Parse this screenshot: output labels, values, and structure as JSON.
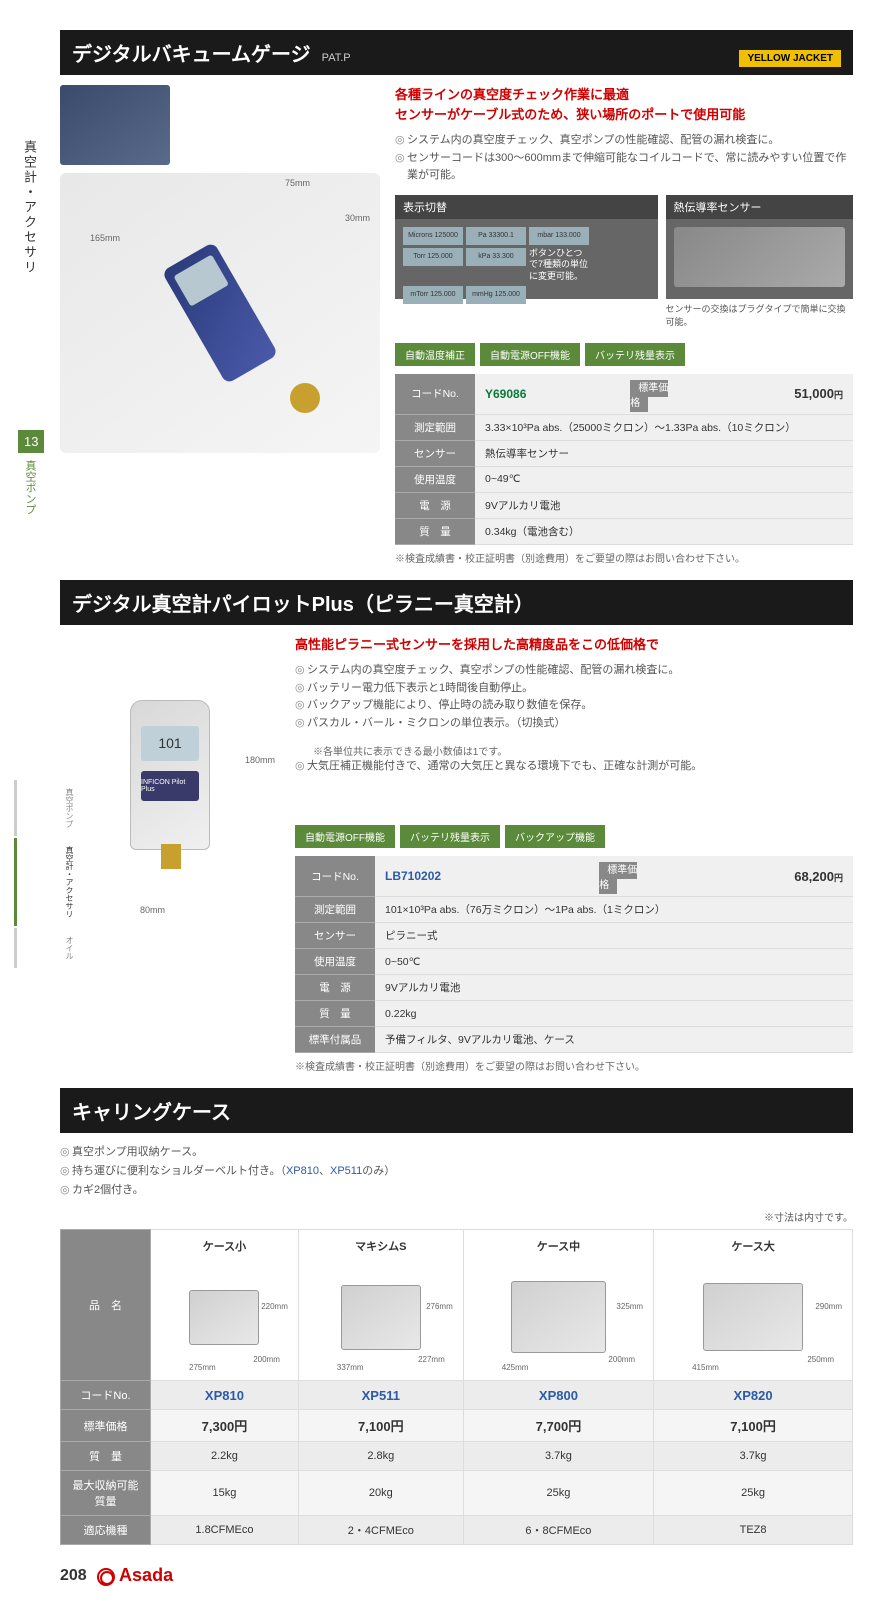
{
  "side": {
    "category": "真空計・アクセサリ",
    "num": "13",
    "sub": "真空ポンプ",
    "tags": [
      "真空ポンプ",
      "真空計・アクセサリ",
      "オイル"
    ]
  },
  "sec1": {
    "title": "デジタルバキュームゲージ",
    "pat": "PAT.P",
    "brand": "YELLOW JACKET",
    "tagline1": "各種ラインの真空度チェック作業に最適",
    "tagline2": "センサーがケーブル式のため、狭い場所のポートで使用可能",
    "feats": [
      "システム内の真空度チェック、真空ポンプの性能確認、配管の漏れ検査に。",
      "センサーコードは300～600mmまで伸縮可能なコイルコードで、常に読みやすい位置で作業が可能。"
    ],
    "dims": {
      "w": "75mm",
      "h": "165mm",
      "d": "30mm"
    },
    "panel1": {
      "hdr": "表示切替",
      "chips": [
        "Microns 125000",
        "Pa 33300.1",
        "mbar 133.000",
        "Torr 125.000",
        "kPa 33.300",
        "",
        "mTorr 125.000",
        "mmHg 125.000"
      ],
      "caption": "ボタンひとつで7種類の単位に変更可能。"
    },
    "panel2": {
      "hdr": "熱伝導率センサー",
      "caption": "センサーの交換はプラグタイプで簡単に交換可能。"
    },
    "badges": [
      "自動温度補正",
      "自動電源OFF機能",
      "バッテリ残量表示"
    ],
    "spec": {
      "code_lbl": "コードNo.",
      "code": "Y69086",
      "price_lbl": "標準価格",
      "price": "51,000",
      "yen": "円",
      "rows": [
        [
          "測定範囲",
          "3.33×10³Pa abs.（25000ミクロン）～1.33Pa abs.（10ミクロン）"
        ],
        [
          "センサー",
          "熱伝導率センサー"
        ],
        [
          "使用温度",
          "0~49℃"
        ],
        [
          "電　源",
          "9Vアルカリ電池"
        ],
        [
          "質　量",
          "0.34kg（電池含む）"
        ]
      ]
    },
    "note": "※検査成績書・校正証明書（別途費用）をご要望の際はお問い合わせ下さい。"
  },
  "sec2": {
    "title": "デジタル真空計パイロットPlus（ピラニー真空計）",
    "tagline": "高性能ピラニー式センサーを採用した高精度品をこの低価格で",
    "dims": {
      "h": "180mm",
      "w": "80mm"
    },
    "display": "101",
    "badge_text": "INFICON Pilot Plus",
    "feats": [
      "システム内の真空度チェック、真空ポンプの性能確認、配管の漏れ検査に。",
      "バッテリー電力低下表示と1時間後自動停止。",
      "バックアップ機能により、停止時の読み取り数値を保存。",
      "パスカル・バール・ミクロンの単位表示。（切換式）"
    ],
    "feat_note": "※各単位共に表示できる最小数値は1です。",
    "feat_extra": "大気圧補正機能付きで、通常の大気圧と異なる環境下でも、正確な計測が可能。",
    "badges": [
      "自動電源OFF機能",
      "バッテリ残量表示",
      "バックアップ機能"
    ],
    "spec": {
      "code_lbl": "コードNo.",
      "code": "LB710202",
      "price_lbl": "標準価格",
      "price": "68,200",
      "yen": "円",
      "rows": [
        [
          "測定範囲",
          "101×10³Pa abs.（76万ミクロン）～1Pa abs.（1ミクロン）"
        ],
        [
          "センサー",
          "ピラニー式"
        ],
        [
          "使用温度",
          "0~50℃"
        ],
        [
          "電　源",
          "9Vアルカリ電池"
        ],
        [
          "質　量",
          "0.22kg"
        ],
        [
          "標準付属品",
          "予備フィルタ、9Vアルカリ電池、ケース"
        ]
      ]
    },
    "note": "※検査成績書・校正証明書（別途費用）をご要望の際はお問い合わせ下さい。"
  },
  "sec3": {
    "title": "キャリングケース",
    "desc": [
      "真空ポンプ用収納ケース。",
      "持ち運びに便利なショルダーベルト付き。（XP810、XP511のみ）",
      "カギ2個付き。"
    ],
    "dim_note": "※寸法は内寸です。",
    "row_hdrs": [
      "品　名",
      "コードNo.",
      "標準価格",
      "質　量",
      "最大収納可能質量",
      "適応機種"
    ],
    "cases": [
      {
        "name": "ケース小",
        "dims": [
          "275mm",
          "220mm",
          "200mm"
        ],
        "size": [
          70,
          55
        ],
        "code": "XP810",
        "price": "7,300",
        "mass": "2.2kg",
        "max": "15kg",
        "model": "1.8CFMEco"
      },
      {
        "name": "マキシムS",
        "dims": [
          "337mm",
          "276mm",
          "227mm"
        ],
        "size": [
          80,
          65
        ],
        "code": "XP511",
        "price": "7,100",
        "mass": "2.8kg",
        "max": "20kg",
        "model": "2・4CFMEco"
      },
      {
        "name": "ケース中",
        "dims": [
          "425mm",
          "325mm",
          "200mm"
        ],
        "size": [
          95,
          72
        ],
        "code": "XP800",
        "price": "7,700",
        "mass": "3.7kg",
        "max": "25kg",
        "model": "6・8CFMEco"
      },
      {
        "name": "ケース大",
        "dims": [
          "415mm",
          "290mm",
          "250mm"
        ],
        "size": [
          100,
          68
        ],
        "code": "XP820",
        "price": "7,100",
        "mass": "3.7kg",
        "max": "25kg",
        "model": "TEZ8"
      }
    ],
    "yen": "円"
  },
  "footer": {
    "page": "208",
    "logo": "Asada"
  }
}
